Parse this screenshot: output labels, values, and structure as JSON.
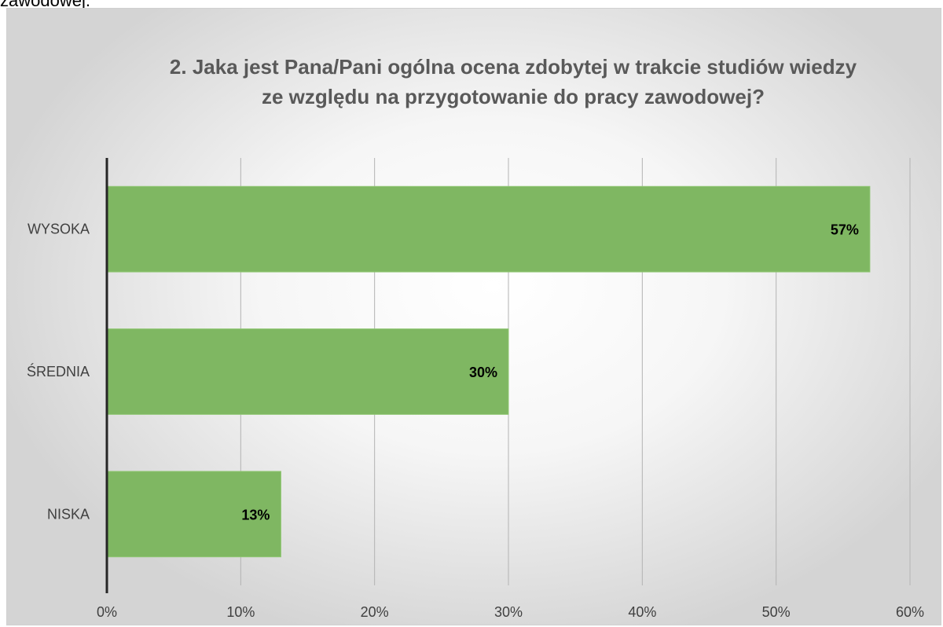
{
  "document": {
    "fragment_text": "zawodowej."
  },
  "chart_data": {
    "type": "bar",
    "orientation": "horizontal",
    "title_lines": [
      "2. Jaka jest Pana/Pani ogólna ocena zdobytej w trakcie studiów wiedzy",
      "ze względu na przygotowanie do pracy zawodowej?"
    ],
    "categories": [
      "WYSOKA",
      "ŚREDNIA",
      "NISKA"
    ],
    "values": [
      57,
      30,
      13
    ],
    "value_labels": [
      "57%",
      "30%",
      "13%"
    ],
    "xlim": [
      0,
      60
    ],
    "xticks": [
      0,
      10,
      20,
      30,
      40,
      50,
      60
    ],
    "xtick_labels": [
      "0%",
      "10%",
      "20%",
      "30%",
      "40%",
      "50%",
      "60%"
    ],
    "grid": "vertical",
    "legend": "none",
    "colors": {
      "bar": "#7fb762",
      "bar_edge": "#8fc672",
      "title": "#595959",
      "axis_text": "#404040",
      "gridline": "#b3b3b3",
      "axis_line": "#262626"
    }
  }
}
